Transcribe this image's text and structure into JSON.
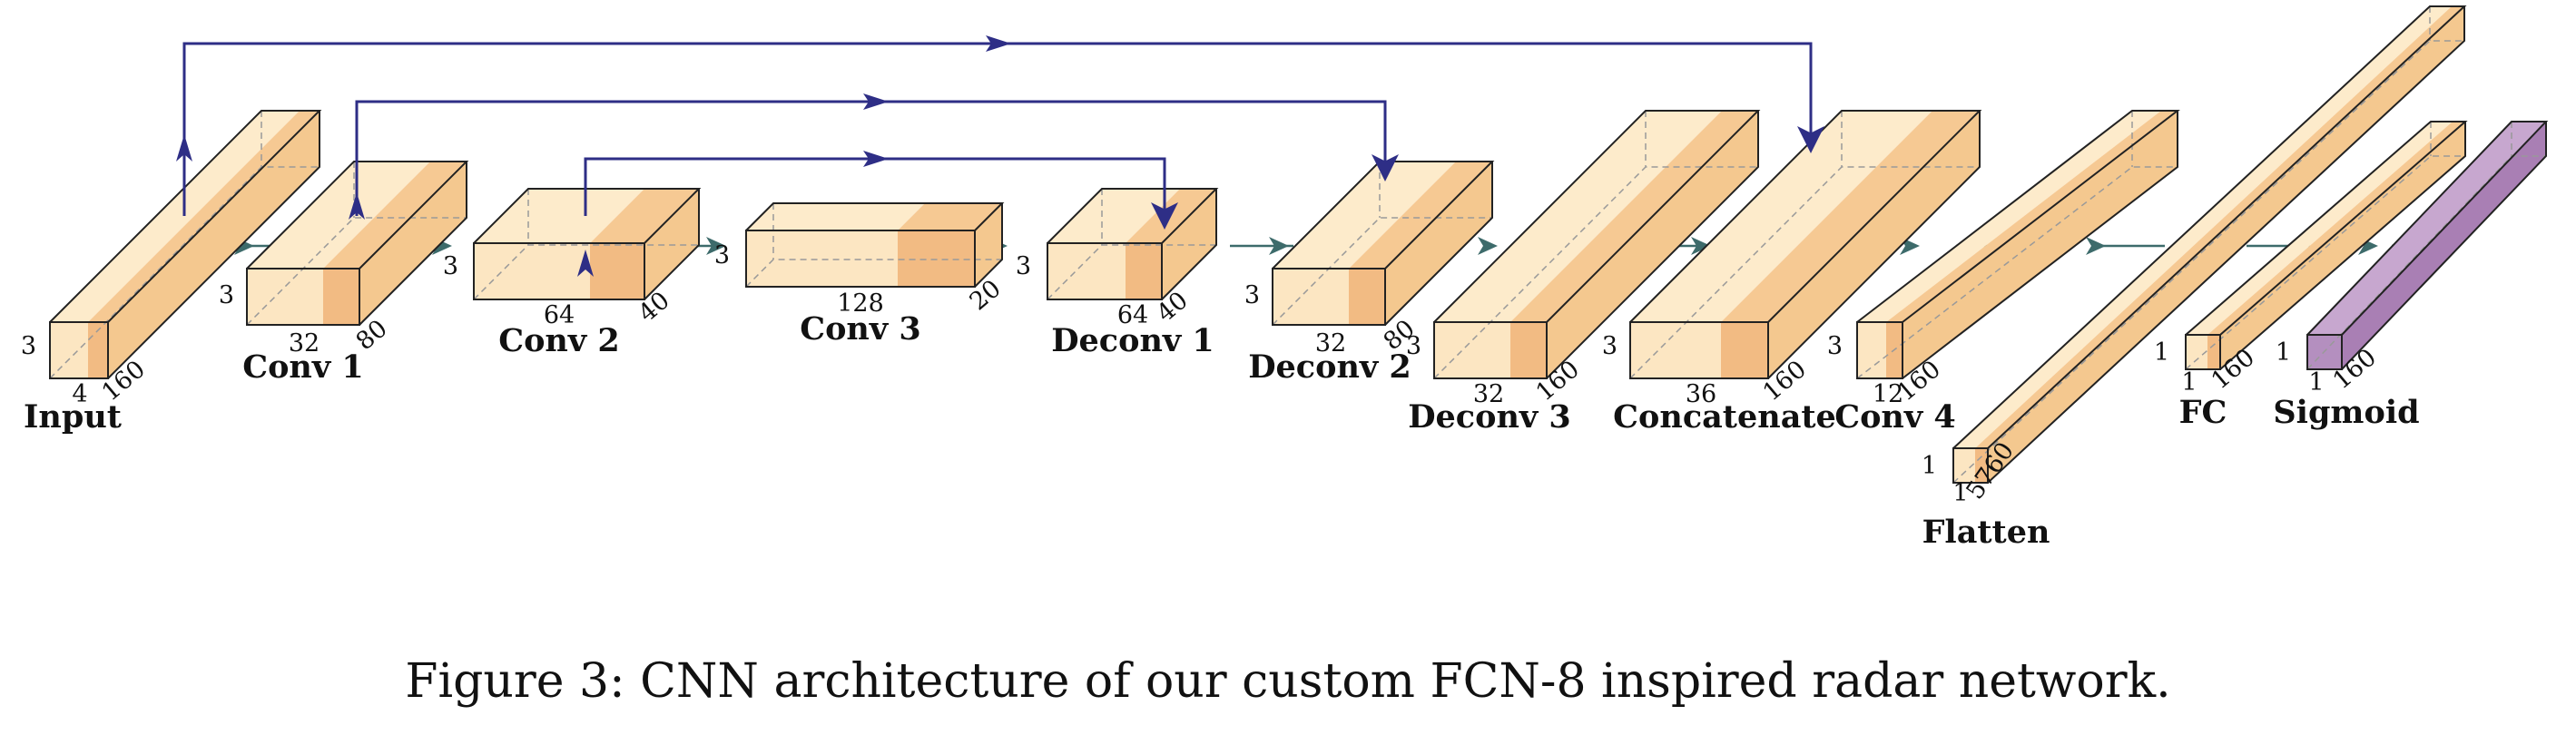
{
  "colors": {
    "block_front": "#fce6c2",
    "block_front_dark": "#f2bb83",
    "block_top": "#fdebcb",
    "block_top_dark": "#f6c993",
    "block_side": "#f4c88f",
    "sigmoid_front": "#b48fbf",
    "sigmoid_top": "#c7a7cf",
    "sigmoid_side": "#a97fb4",
    "skip_arrow": "#2e2e86",
    "flow_arrow": "#3d6b6b"
  },
  "layers": [
    {
      "name": "Input",
      "dims": [
        "3",
        "4",
        "160"
      ]
    },
    {
      "name": "Conv 1",
      "dims": [
        "3",
        "32",
        "80"
      ]
    },
    {
      "name": "Conv 2",
      "dims": [
        "3",
        "64",
        "40"
      ]
    },
    {
      "name": "Conv 3",
      "dims": [
        "3",
        "128",
        "20"
      ]
    },
    {
      "name": "Deconv 1",
      "dims": [
        "3",
        "64",
        "40"
      ]
    },
    {
      "name": "Deconv 2",
      "dims": [
        "3",
        "32",
        "80"
      ]
    },
    {
      "name": "Deconv 3",
      "dims": [
        "3",
        "32",
        "160"
      ]
    },
    {
      "name": "Concatenate",
      "dims": [
        "3",
        "36",
        "160"
      ]
    },
    {
      "name": "Conv 4",
      "dims": [
        "3",
        "12",
        "160"
      ]
    },
    {
      "name": "Flatten",
      "dims": [
        "1",
        "1",
        "5760"
      ]
    },
    {
      "name": "FC",
      "dims": [
        "1",
        "1",
        "160"
      ]
    },
    {
      "name": "Sigmoid",
      "dims": [
        "1",
        "1",
        "160"
      ]
    }
  ],
  "caption": "Figure 3: CNN architecture of our custom FCN-8 inspired radar network."
}
